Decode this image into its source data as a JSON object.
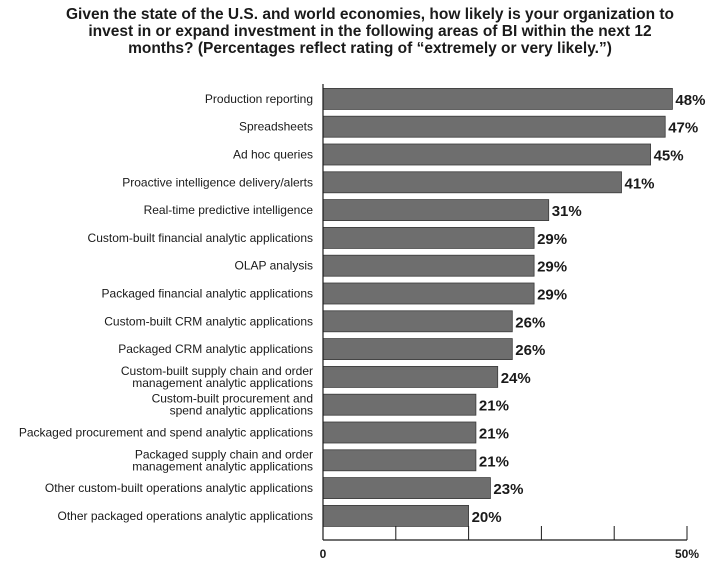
{
  "chart_data": {
    "type": "bar",
    "orientation": "horizontal",
    "title": "Given the state of the U.S. and world economies, how likely is your organization to invest in or expand investment in the following areas of BI within the next 12 months? (Percentages reflect rating of “extremely or very likely.”)",
    "categories": [
      "Production reporting",
      "Spreadsheets",
      "Ad hoc queries",
      "Proactive intelligence delivery/alerts",
      "Real-time predictive intelligence",
      "Custom-built financial analytic applications",
      "OLAP analysis",
      "Packaged financial analytic applications",
      "Custom-built CRM analytic applications",
      "Packaged CRM analytic applications",
      "Custom-built supply chain and order management analytic applications",
      "Custom-built procurement and spend analytic applications",
      "Packaged procurement and spend analytic applications",
      "Packaged supply chain and order management analytic applications",
      "Other custom-built operations analytic applications",
      "Other packaged operations analytic applications"
    ],
    "category_lines": [
      [
        "Production reporting"
      ],
      [
        "Spreadsheets"
      ],
      [
        "Ad hoc queries"
      ],
      [
        "Proactive intelligence delivery/alerts"
      ],
      [
        "Real-time predictive intelligence"
      ],
      [
        "Custom-built financial analytic applications"
      ],
      [
        "OLAP analysis"
      ],
      [
        "Packaged financial analytic applications"
      ],
      [
        "Custom-built CRM analytic applications"
      ],
      [
        "Packaged CRM analytic applications"
      ],
      [
        "Custom-built supply chain and order",
        "management analytic applications"
      ],
      [
        "Custom-built procurement and",
        "spend analytic applications"
      ],
      [
        "Packaged procurement and spend analytic applications"
      ],
      [
        "Packaged supply chain and order",
        "management analytic applications"
      ],
      [
        "Other custom-built operations analytic applications"
      ],
      [
        "Other packaged operations analytic applications"
      ]
    ],
    "values": [
      48,
      47,
      45,
      41,
      31,
      29,
      29,
      29,
      26,
      26,
      24,
      21,
      21,
      21,
      23,
      20
    ],
    "value_labels": [
      "48%",
      "47%",
      "45%",
      "41%",
      "31%",
      "29%",
      "29%",
      "29%",
      "26%",
      "26%",
      "24%",
      "21%",
      "21%",
      "21%",
      "23%",
      "20%"
    ],
    "xlim": [
      0,
      50
    ],
    "x_tick_labels": [
      "0",
      "50%"
    ],
    "grid": false,
    "bar_color": "#6e6e6e"
  }
}
